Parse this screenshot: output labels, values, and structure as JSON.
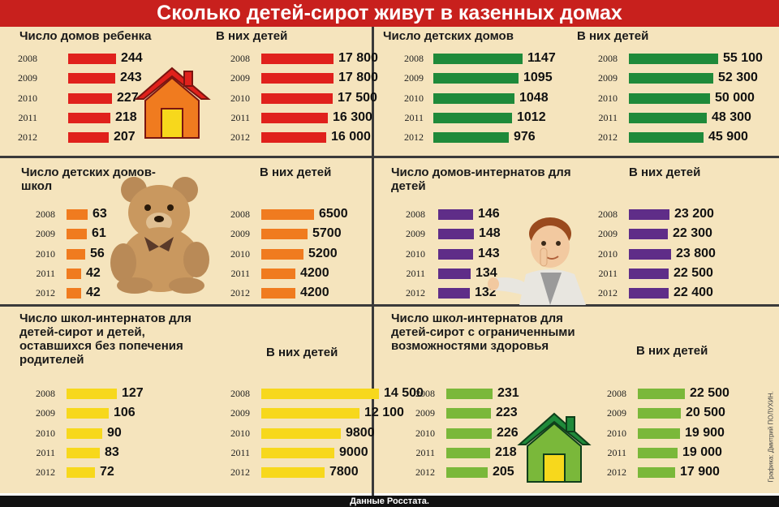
{
  "title": "Сколько детей-сирот живут в казенных домах",
  "footer": "Данные Росстата.",
  "credit": "Графика: Дмитрий ПОЛУХИН.",
  "colors": {
    "red": "#e0211c",
    "green": "#1f8a3a",
    "orange": "#f07b1f",
    "purple": "#5f2d88",
    "yellow": "#f7d81c",
    "lightgreen": "#7ab83a"
  },
  "chart_data": [
    {
      "type": "bar",
      "title": "Число домов ребенка",
      "categories": [
        "2008",
        "2009",
        "2010",
        "2011",
        "2012"
      ],
      "values": [
        244,
        243,
        227,
        218,
        207
      ],
      "labels": [
        "244",
        "243",
        "227",
        "218",
        "207"
      ],
      "xlim": [
        0,
        500
      ]
    },
    {
      "type": "bar",
      "title": "В них детей",
      "categories": [
        "2008",
        "2009",
        "2010",
        "2011",
        "2012"
      ],
      "values": [
        17800,
        17800,
        17500,
        16300,
        16000
      ],
      "labels": [
        "17 800",
        "17 800",
        "17 500",
        "16 300",
        "16 000"
      ],
      "xlim": [
        0,
        60000
      ]
    },
    {
      "type": "bar",
      "title": "Число детских домов",
      "categories": [
        "2008",
        "2009",
        "2010",
        "2011",
        "2012"
      ],
      "values": [
        1147,
        1095,
        1048,
        1012,
        976
      ],
      "labels": [
        "1147",
        "1095",
        "1048",
        "1012",
        "976"
      ],
      "xlim": [
        0,
        1150
      ]
    },
    {
      "type": "bar",
      "title": "В них детей",
      "categories": [
        "2008",
        "2009",
        "2010",
        "2011",
        "2012"
      ],
      "values": [
        55100,
        52300,
        50000,
        48300,
        45900
      ],
      "labels": [
        "55 100",
        "52 300",
        "50 000",
        "48 300",
        "45 900"
      ],
      "xlim": [
        0,
        55100
      ]
    },
    {
      "type": "bar",
      "title": "Число детских домов-школ",
      "categories": [
        "2008",
        "2009",
        "2010",
        "2011",
        "2012"
      ],
      "values": [
        63,
        61,
        56,
        42,
        42
      ],
      "labels": [
        "63",
        "61",
        "56",
        "42",
        "42"
      ],
      "xlim": [
        0,
        300
      ]
    },
    {
      "type": "bar",
      "title": "В них детей",
      "categories": [
        "2008",
        "2009",
        "2010",
        "2011",
        "2012"
      ],
      "values": [
        6500,
        5700,
        5200,
        4200,
        4200
      ],
      "labels": [
        "6500",
        "5700",
        "5200",
        "4200",
        "4200"
      ],
      "xlim": [
        0,
        30000
      ]
    },
    {
      "type": "bar",
      "title": "Число домов-интернатов для детей",
      "categories": [
        "2008",
        "2009",
        "2010",
        "2011",
        "2012"
      ],
      "values": [
        146,
        148,
        143,
        134,
        132
      ],
      "labels": [
        "146",
        "148",
        "143",
        "134",
        "132"
      ],
      "xlim": [
        0,
        370
      ]
    },
    {
      "type": "bar",
      "title": "В них детей",
      "categories": [
        "2008",
        "2009",
        "2010",
        "2011",
        "2012"
      ],
      "values": [
        23200,
        22300,
        23800,
        22500,
        22400
      ],
      "labels": [
        "23 200",
        "22 300",
        "23 800",
        "22 500",
        "22 400"
      ],
      "xlim": [
        0,
        60000
      ]
    },
    {
      "type": "bar",
      "title": "Число школ-интернатов для детей-сирот и детей, оставшихся без попечения родителей",
      "categories": [
        "2008",
        "2009",
        "2010",
        "2011",
        "2012"
      ],
      "values": [
        127,
        106,
        90,
        83,
        72
      ],
      "labels": [
        "127",
        "106",
        "90",
        "83",
        "72"
      ],
      "xlim": [
        0,
        305
      ]
    },
    {
      "type": "bar",
      "title": "В них детей",
      "categories": [
        "2008",
        "2009",
        "2010",
        "2011",
        "2012"
      ],
      "values": [
        14500,
        12100,
        9800,
        9000,
        7800
      ],
      "labels": [
        "14 500",
        "12 100",
        "9800",
        "9000",
        "7800"
      ],
      "xlim": [
        0,
        35000
      ]
    },
    {
      "type": "bar",
      "title": "Число школ-интернатов для детей-сирот с ограниченными возможностями здоровья",
      "categories": [
        "2008",
        "2009",
        "2010",
        "2011",
        "2012"
      ],
      "values": [
        231,
        223,
        226,
        218,
        205
      ],
      "labels": [
        "231",
        "223",
        "226",
        "218",
        "205"
      ],
      "xlim": [
        0,
        525
      ]
    },
    {
      "type": "bar",
      "title": "В них детей",
      "categories": [
        "2008",
        "2009",
        "2010",
        "2011",
        "2012"
      ],
      "values": [
        22500,
        20500,
        19900,
        19000,
        17900
      ],
      "labels": [
        "22 500",
        "20 500",
        "19 900",
        "19 000",
        "17 900"
      ],
      "xlim": [
        0,
        52000
      ]
    }
  ]
}
